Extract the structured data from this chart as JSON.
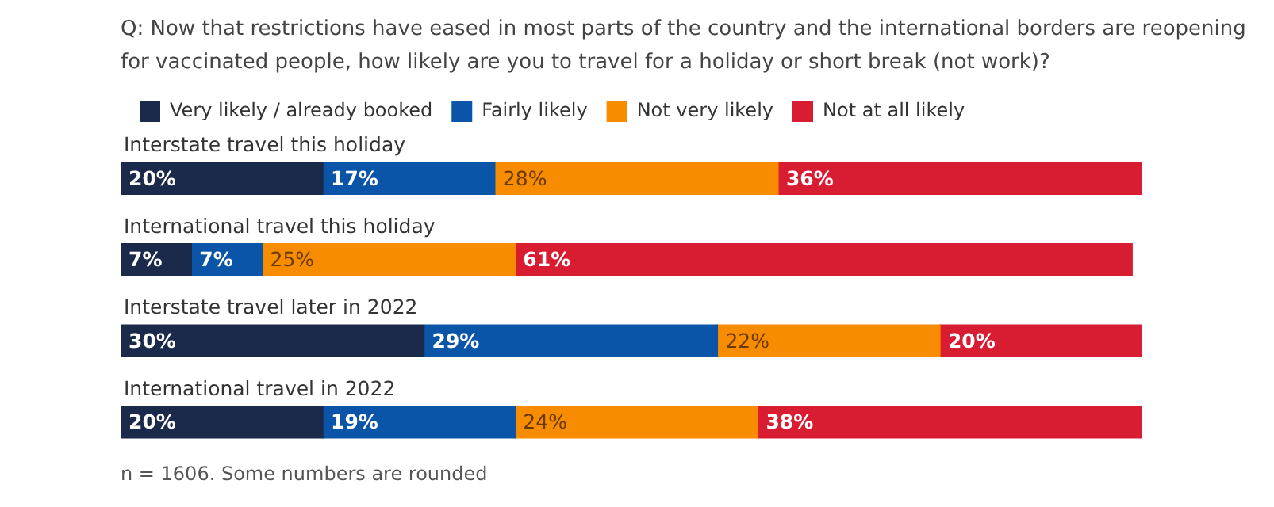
{
  "chart_data": {
    "type": "bar",
    "orientation": "horizontal",
    "stacked": true,
    "title": "Q: Now that restrictions have eased in most parts of the country and the international borders are reopening for vaccinated people, how likely are you to travel for a holiday or short break (not work)?",
    "categories": [
      "Interstate travel this holiday",
      "International travel this holiday",
      "Interstate travel later in 2022",
      "International travel in 2022"
    ],
    "series": [
      {
        "name": "Very likely / already booked",
        "color": "#1b2a4a",
        "values": [
          20,
          7,
          30,
          20
        ],
        "value_labels": [
          "20%",
          "7%",
          "30%",
          "20%"
        ]
      },
      {
        "name": "Fairly likely",
        "color": "#0a55a8",
        "values": [
          17,
          7,
          29,
          19
        ],
        "value_labels": [
          "17%",
          "7%",
          "29%",
          "19%"
        ]
      },
      {
        "name": "Not very likely",
        "color": "#f78c00",
        "values": [
          28,
          25,
          22,
          24
        ],
        "value_labels": [
          "28%",
          "25%",
          "22%",
          "24%"
        ]
      },
      {
        "name": "Not at all likely",
        "color": "#d81c32",
        "values": [
          36,
          61,
          20,
          38
        ],
        "value_labels": [
          "36%",
          "61%",
          "20%",
          "38%"
        ]
      }
    ],
    "tick_labels": false,
    "legend": "top left",
    "annotations": [
      "n = 1606. Some numbers are rounded"
    ]
  }
}
